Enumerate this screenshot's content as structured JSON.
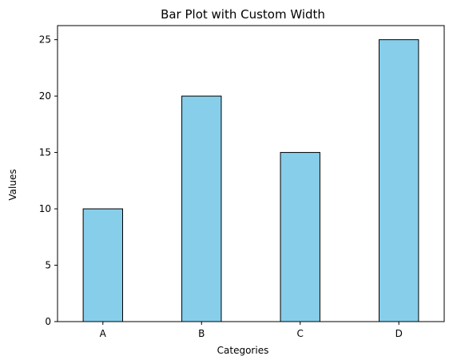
{
  "chart_data": {
    "type": "bar",
    "title": "Bar Plot with Custom Width",
    "xlabel": "Categories",
    "ylabel": "Values",
    "categories": [
      "A",
      "B",
      "C",
      "D"
    ],
    "values": [
      10,
      20,
      15,
      25
    ],
    "ylim": [
      0,
      26.25
    ],
    "yticks": [
      0,
      5,
      10,
      15,
      20,
      25
    ],
    "bar_width": 0.4,
    "bar_color": "#87CEEB",
    "edge_color": "#000000",
    "grid": false,
    "legend": false
  }
}
